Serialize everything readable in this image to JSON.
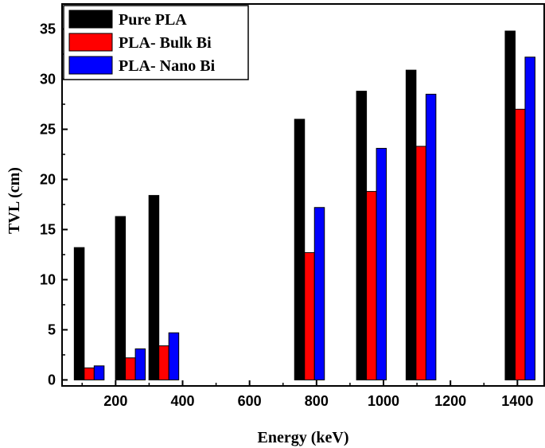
{
  "chart_data": {
    "type": "bar",
    "xlabel": "Energy (keV)",
    "ylabel": "TVL (cm)",
    "xlim": [
      40,
      1480
    ],
    "ylim": [
      -0.6,
      37.5
    ],
    "xticks": [
      200,
      400,
      600,
      800,
      1000,
      1200,
      1400
    ],
    "yticks": [
      0,
      5,
      10,
      15,
      20,
      25,
      30,
      35
    ],
    "legend_position": "top-left",
    "x": [
      121,
      244,
      344,
      779,
      964,
      1112,
      1408
    ],
    "series": [
      {
        "name": "Pure PLA",
        "color": "#000000",
        "values": [
          13.2,
          16.3,
          18.4,
          26.0,
          28.8,
          30.9,
          34.8
        ]
      },
      {
        "name": "PLA- Bulk Bi",
        "color": "#ff0000",
        "values": [
          1.2,
          2.2,
          3.4,
          12.7,
          18.8,
          23.3,
          27.0
        ]
      },
      {
        "name": "PLA- Nano Bi",
        "color": "#0000ff",
        "values": [
          1.4,
          3.1,
          4.7,
          17.2,
          23.1,
          28.5,
          32.2
        ]
      }
    ]
  }
}
